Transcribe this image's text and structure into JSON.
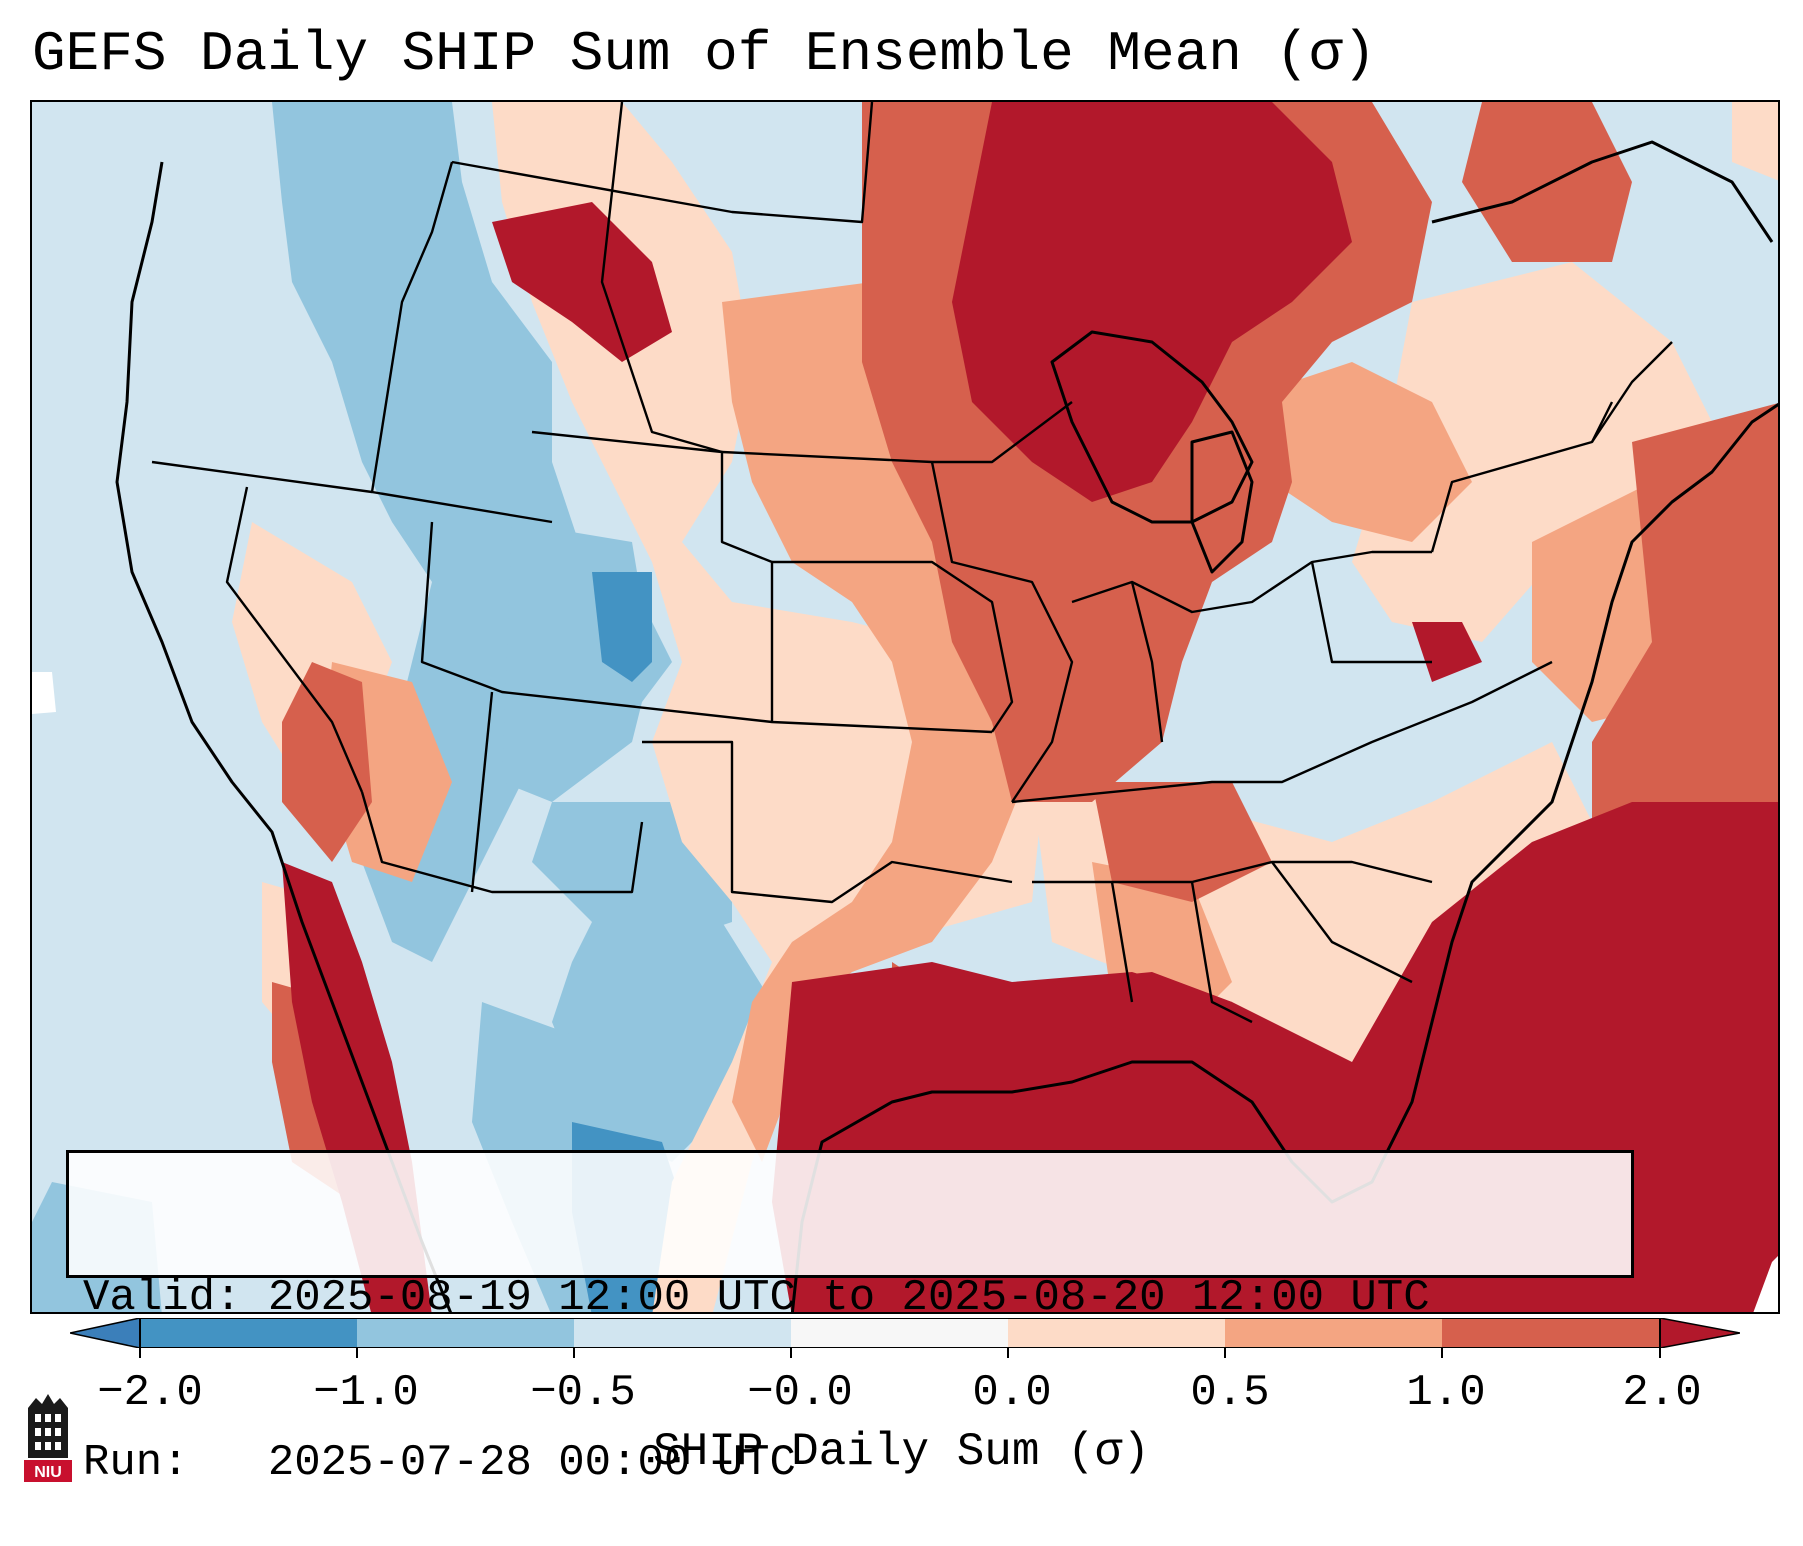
{
  "title": "GEFS Daily SHIP Sum of Ensemble Mean (σ)",
  "info": {
    "valid": "Valid: 2025-08-19 12:00 UTC to 2025-08-20 12:00 UTC",
    "run": "Run:   2025-07-28 00:00 UTC"
  },
  "colorbar": {
    "label": "SHIP Daily Sum (σ)",
    "ticks": [
      "−2.0",
      "−1.0",
      "−0.5",
      "−0.0",
      "0.0",
      "0.5",
      "1.0",
      "2.0"
    ],
    "colors": {
      "below": "#3b7fba",
      "-2.0_-1.0": "#4393c3",
      "-1.0_-0.5": "#92c5de",
      "-0.5_-0.0": "#d1e5f0",
      "-0.0_0.0": "#f7f7f7",
      "0.0_0.5": "#fddbc7",
      "0.5_1.0": "#f4a582",
      "1.0_2.0": "#d6604d",
      "above": "#b2182b"
    }
  },
  "logo": {
    "icon": "niu-logo",
    "text": "NIU"
  }
}
